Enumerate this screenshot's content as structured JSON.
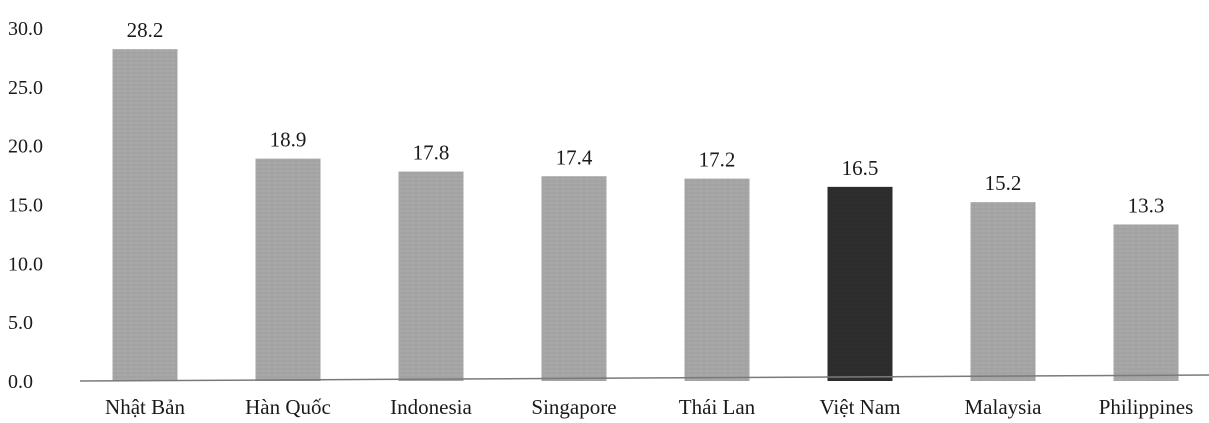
{
  "chart_data": {
    "type": "bar",
    "categories": [
      "Nhật Bản",
      "Hàn Quốc",
      "Indonesia",
      "Singapore",
      "Thái Lan",
      "Việt Nam",
      "Malaysia",
      "Philippines"
    ],
    "values": [
      28.2,
      18.9,
      17.8,
      17.4,
      17.2,
      16.5,
      15.2,
      13.3
    ],
    "value_labels": [
      "28.2",
      "18.9",
      "17.8",
      "17.4",
      "17.2",
      "16.5",
      "15.2",
      "13.3"
    ],
    "y_ticks": [
      "0.0",
      "5.0",
      "10.0",
      "15.0",
      "20.0",
      "25.0",
      "30.0"
    ],
    "ylim": [
      0,
      30
    ],
    "grid": false,
    "colors": {
      "default_bar": "#a8a8a8",
      "highlight_bar": "#2e2e2e",
      "axis": "#7a7a7a",
      "text": "#1a1a1a"
    },
    "highlight_category": "Việt Nam"
  }
}
